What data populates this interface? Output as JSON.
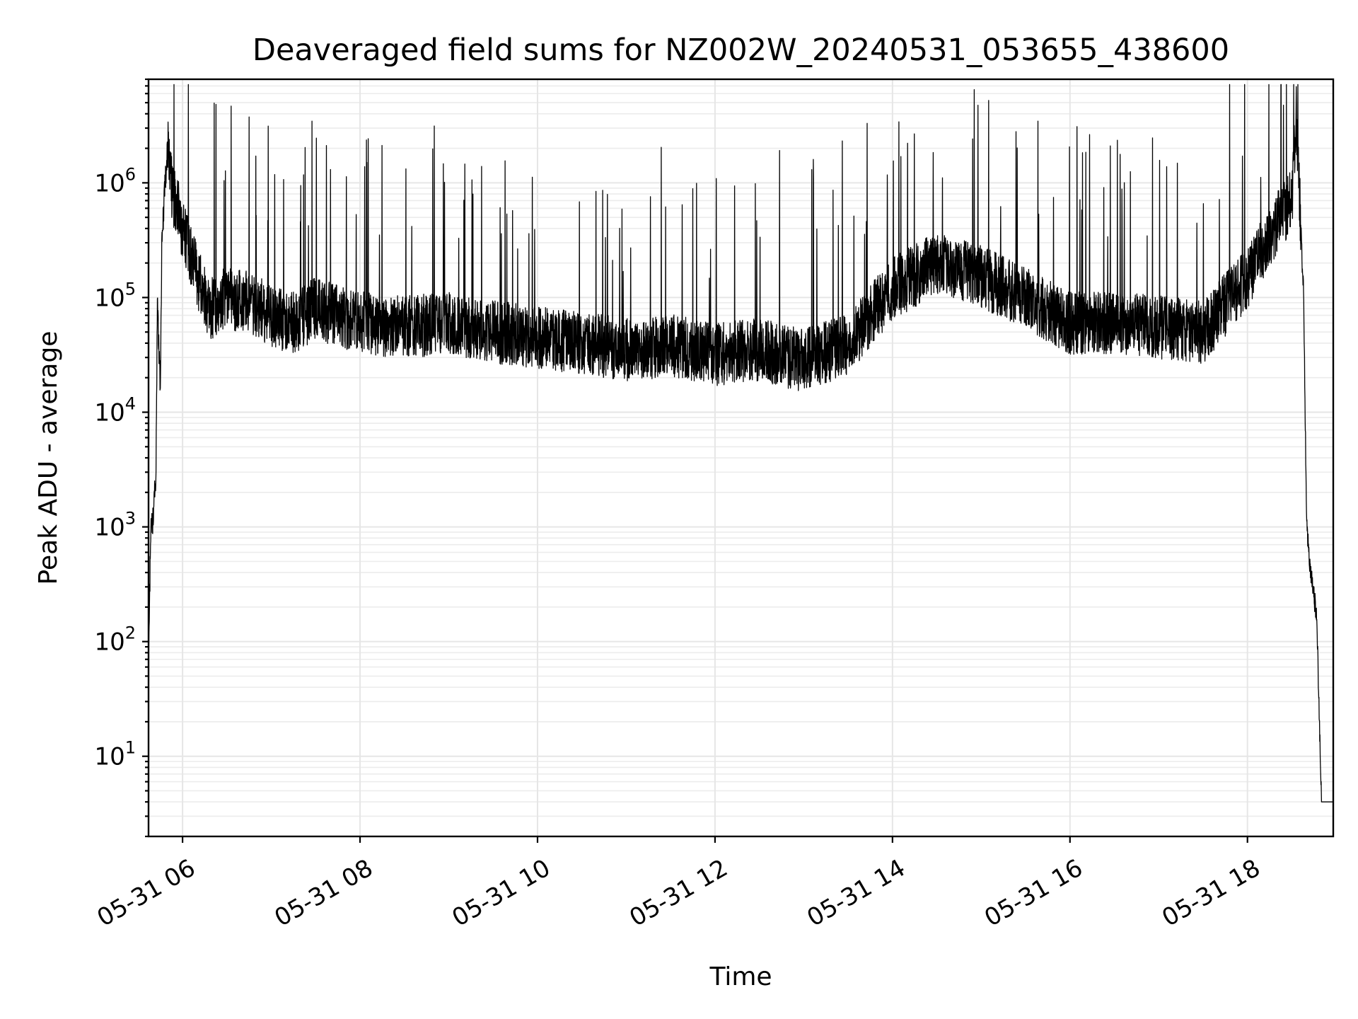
{
  "chart_data": {
    "type": "line",
    "title": "Deaveraged field sums for NZ002W_20240531_053655_438600",
    "xlabel": "Time",
    "ylabel": "Peak ADU - average",
    "x_scale": "time",
    "y_scale": "log",
    "xlim": [
      "2024-05-31 05:37",
      "2024-05-31 18:58"
    ],
    "ylim": [
      2,
      8000000
    ],
    "grid": true,
    "legend": "none",
    "line_color": "#000000",
    "grid_color": "#e6e6e6",
    "x_ticks": [
      {
        "value": "2024-05-31 06:00",
        "label": "05-31 06"
      },
      {
        "value": "2024-05-31 08:00",
        "label": "05-31 08"
      },
      {
        "value": "2024-05-31 10:00",
        "label": "05-31 10"
      },
      {
        "value": "2024-05-31 12:00",
        "label": "05-31 12"
      },
      {
        "value": "2024-05-31 14:00",
        "label": "05-31 14"
      },
      {
        "value": "2024-05-31 16:00",
        "label": "05-31 16"
      },
      {
        "value": "2024-05-31 18:00",
        "label": "05-31 18"
      }
    ],
    "y_ticks": [
      {
        "value": 10,
        "base": "10",
        "exp": "1"
      },
      {
        "value": 100,
        "base": "10",
        "exp": "2"
      },
      {
        "value": 1000,
        "base": "10",
        "exp": "3"
      },
      {
        "value": 10000,
        "base": "10",
        "exp": "4"
      },
      {
        "value": 100000,
        "base": "10",
        "exp": "5"
      },
      {
        "value": 1000000,
        "base": "10",
        "exp": "6"
      }
    ],
    "series": [
      {
        "x": [
          "2024-05-31 05:37",
          "2024-05-31 05:38",
          "2024-05-31 05:39",
          "2024-05-31 05:40",
          "2024-05-31 05:42",
          "2024-05-31 05:43",
          "2024-05-31 05:45",
          "2024-05-31 05:46",
          "2024-05-31 05:48",
          "2024-05-31 05:50",
          "2024-05-31 05:53",
          "2024-05-31 05:57",
          "2024-05-31 06:00",
          "2024-05-31 06:05",
          "2024-05-31 06:10",
          "2024-05-31 06:15",
          "2024-05-31 06:20",
          "2024-05-31 06:30",
          "2024-05-31 06:45",
          "2024-05-31 07:00",
          "2024-05-31 07:15",
          "2024-05-31 07:30",
          "2024-05-31 07:45",
          "2024-05-31 08:00",
          "2024-05-31 08:30",
          "2024-05-31 09:00",
          "2024-05-31 09:30",
          "2024-05-31 10:00",
          "2024-05-31 10:30",
          "2024-05-31 11:00",
          "2024-05-31 11:30",
          "2024-05-31 12:00",
          "2024-05-31 12:30",
          "2024-05-31 13:00",
          "2024-05-31 13:30",
          "2024-05-31 14:00",
          "2024-05-31 14:30",
          "2024-05-31 15:00",
          "2024-05-31 15:30",
          "2024-05-31 16:00",
          "2024-05-31 16:30",
          "2024-05-31 17:00",
          "2024-05-31 17:30",
          "2024-05-31 18:00",
          "2024-05-31 18:15",
          "2024-05-31 18:30",
          "2024-05-31 18:33",
          "2024-05-31 18:35",
          "2024-05-31 18:38",
          "2024-05-31 18:40",
          "2024-05-31 18:42",
          "2024-05-31 18:45",
          "2024-05-31 18:47",
          "2024-05-31 18:50",
          "2024-05-31 18:53",
          "2024-05-31 18:58"
        ],
        "values": [
          60,
          400,
          1200,
          1100,
          3000,
          90000,
          15000,
          300000,
          900000,
          2000000,
          800000,
          600000,
          400000,
          250000,
          150000,
          100000,
          80000,
          100000,
          90000,
          70000,
          60000,
          80000,
          70000,
          60000,
          55000,
          60000,
          50000,
          45000,
          40000,
          35000,
          38000,
          32000,
          35000,
          28000,
          40000,
          120000,
          200000,
          150000,
          100000,
          60000,
          60000,
          55000,
          50000,
          150000,
          350000,
          700000,
          4000000,
          900000,
          100000,
          1000,
          500,
          250,
          150,
          4,
          4,
          4
        ]
      }
    ]
  }
}
